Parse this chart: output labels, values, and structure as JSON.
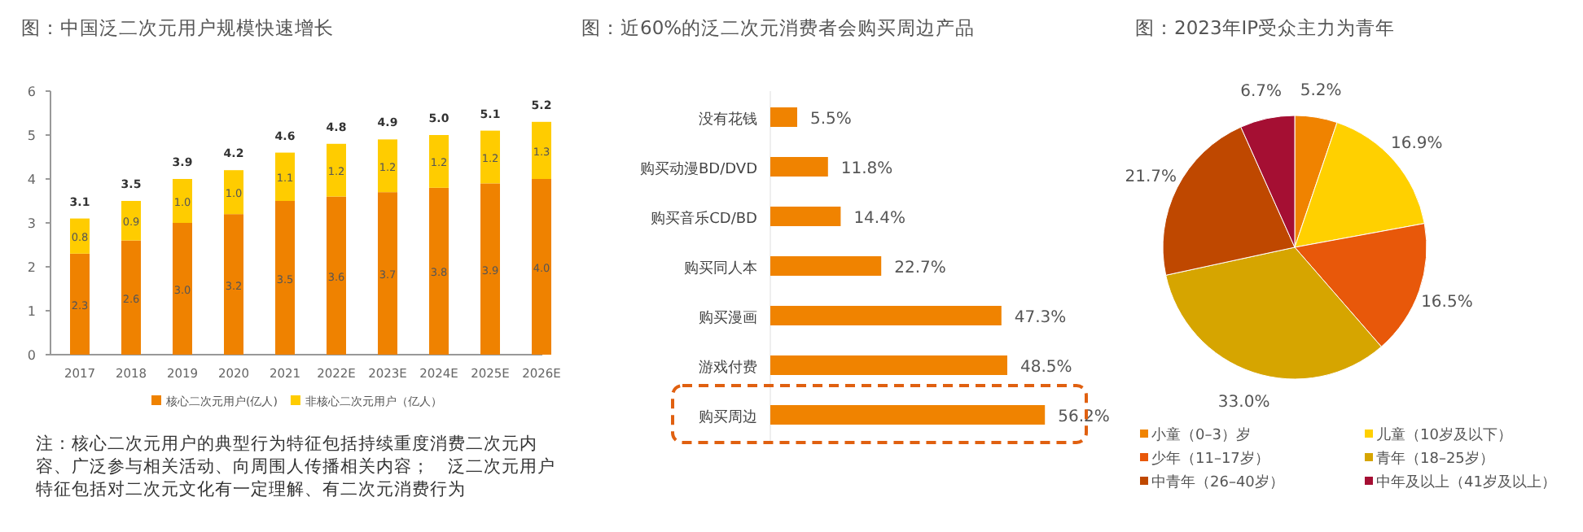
{
  "chart_data": [
    {
      "type": "bar",
      "stacked": true,
      "title": "图：中国泛二次元用户规模快速增长",
      "categories": [
        "2017",
        "2018",
        "2019",
        "2020",
        "2021",
        "2022E",
        "2023E",
        "2024E",
        "2025E",
        "2026E"
      ],
      "series": [
        {
          "name": "核心二次元用户(亿人)",
          "color": "#ef8200",
          "values": [
            2.3,
            2.6,
            3.0,
            3.2,
            3.5,
            3.6,
            3.7,
            3.8,
            3.9,
            4.0
          ],
          "value_labels": [
            "2.3",
            "2.6",
            "3.0",
            "3.2",
            "3.5",
            "3.6",
            "3.7",
            "3.8",
            "3.9",
            "4.0"
          ]
        },
        {
          "name": "非核心二次元用户（亿人）",
          "color": "#ffcc00",
          "values": [
            0.8,
            0.9,
            1.0,
            1.0,
            1.1,
            1.2,
            1.2,
            1.2,
            1.2,
            1.3
          ],
          "value_labels": [
            "0.8",
            "0.9",
            "1.0",
            "1.0",
            "1.1",
            "1.2",
            "1.2",
            "1.2",
            "1.2",
            "1.3"
          ]
        }
      ],
      "totals": [
        "3.1",
        "3.5",
        "3.9",
        "4.2",
        "4.6",
        "4.8",
        "4.9",
        "5.0",
        "5.1",
        "5.2"
      ],
      "ylim": [
        0,
        6
      ],
      "yticks": [
        0,
        1,
        2,
        3,
        4,
        5,
        6
      ],
      "legend": "bottom",
      "annotations": [
        "注：核心二次元用户的典型行为特征包括持续重度消费二次元内容、广泛参与相关活动、向周围人传播相关内容；　泛二次元用户特征包括对二次元文化有一定理解、有二次元消费行为"
      ]
    },
    {
      "type": "bar",
      "orientation": "horizontal",
      "title": "图：近60%的泛二次元消费者会购买周边产品",
      "categories": [
        "没有花钱",
        "购买动漫BD/DVD",
        "购买音乐CD/BD",
        "购买同人本",
        "购买漫画",
        "游戏付费",
        "购买周边"
      ],
      "values": [
        5.5,
        11.8,
        14.4,
        22.7,
        47.3,
        48.5,
        56.2
      ],
      "color": "#f08300",
      "value_labels": [
        "5.5%",
        "11.8%",
        "14.4%",
        "22.7%",
        "47.3%",
        "48.5%",
        "56.2%"
      ]
    },
    {
      "type": "pie",
      "title": "图：2023年IP受众主力为青年",
      "categories": [
        "小童（0–3）岁",
        "儿童（10岁及以下）",
        "少年（11–17岁）",
        "青年（18–25岁）",
        "中青年（26–40岁）",
        "中年及以上（41岁及以上）"
      ],
      "values": [
        5.2,
        16.9,
        16.5,
        33.0,
        21.7,
        6.7
      ],
      "colors": [
        "#f08300",
        "#ffd000",
        "#e8580a",
        "#d6a500",
        "#bf4800",
        "#a50f33"
      ],
      "value_labels": [
        "5.2%",
        "16.9%",
        "16.5%",
        "33.0%",
        "21.7%",
        "6.7%"
      ],
      "legend": "bottom"
    }
  ]
}
